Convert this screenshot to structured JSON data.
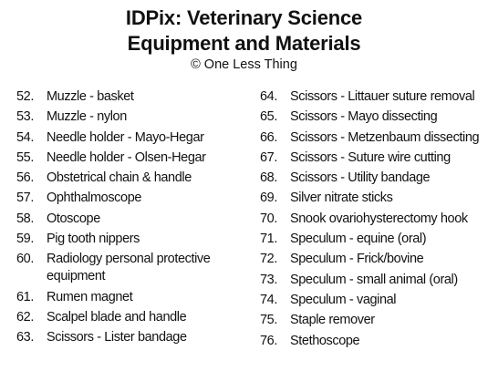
{
  "header": {
    "title_line1": "IDPix: Veterinary Science",
    "title_line2": "Equipment and Materials",
    "credit": "© One Less Thing"
  },
  "left_items": [
    {
      "num": "52.",
      "label": "Muzzle - basket"
    },
    {
      "num": "53.",
      "label": "Muzzle - nylon"
    },
    {
      "num": "54.",
      "label": "Needle holder - Mayo-Hegar"
    },
    {
      "num": "55.",
      "label": "Needle holder - Olsen-Hegar"
    },
    {
      "num": "56.",
      "label": "Obstetrical chain & handle"
    },
    {
      "num": "57.",
      "label": "Ophthalmoscope"
    },
    {
      "num": "58.",
      "label": "Otoscope"
    },
    {
      "num": "59.",
      "label": "Pig tooth nippers"
    },
    {
      "num": "60.",
      "label": "Radiology personal protective equipment"
    },
    {
      "num": "61.",
      "label": "Rumen magnet"
    },
    {
      "num": "62.",
      "label": "Scalpel blade and handle"
    },
    {
      "num": "63.",
      "label": "Scissors - Lister bandage"
    }
  ],
  "right_items": [
    {
      "num": "64.",
      "label": "Scissors - Littauer suture removal"
    },
    {
      "num": "65.",
      "label": "Scissors - Mayo dissecting"
    },
    {
      "num": "66.",
      "label": "Scissors - Metzenbaum dissecting"
    },
    {
      "num": "67.",
      "label": "Scissors - Suture wire cutting"
    },
    {
      "num": "68.",
      "label": "Scissors - Utility bandage"
    },
    {
      "num": "69.",
      "label": "Silver nitrate sticks"
    },
    {
      "num": "70.",
      "label": "Snook ovariohysterectomy hook"
    },
    {
      "num": "71.",
      "label": "Speculum - equine (oral)"
    },
    {
      "num": "72.",
      "label": "Speculum - Frick/bovine"
    },
    {
      "num": "73.",
      "label": "Speculum - small animal (oral)"
    },
    {
      "num": "74.",
      "label": "Speculum - vaginal"
    },
    {
      "num": "75.",
      "label": "Staple remover"
    },
    {
      "num": "76.",
      "label": "Stethoscope"
    }
  ]
}
